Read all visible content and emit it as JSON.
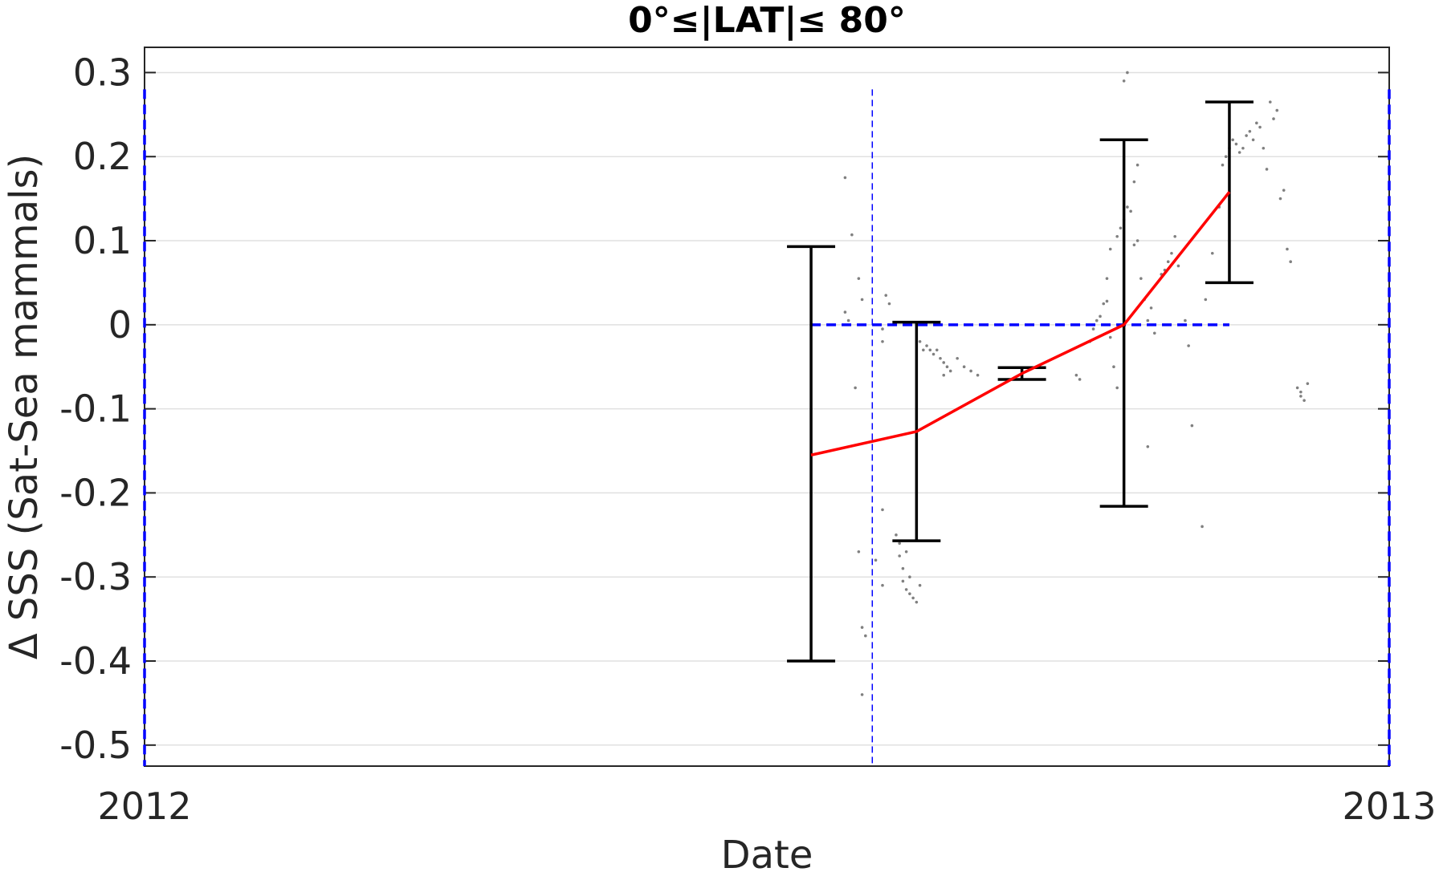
{
  "chart_data": {
    "type": "line",
    "title": "0°≤|LAT|≤ 80°",
    "xlabel": "Date",
    "ylabel": "Δ SSS (Sat-Sea mammals)",
    "x_tick_labels": [
      "2012",
      "2013"
    ],
    "xlim": [
      "2012-01-01",
      "2013-01-01"
    ],
    "ylim": [
      -0.525,
      0.33
    ],
    "y_ticks": [
      0.3,
      0.2,
      0.1,
      0,
      -0.1,
      -0.2,
      -0.3,
      -0.4,
      -0.5
    ],
    "y_tick_labels": [
      "0.3",
      "0.2",
      "0.1",
      "0",
      "-0.1",
      "-0.2",
      "-0.3",
      "-0.4",
      "-0.5"
    ],
    "grid": true,
    "colors": {
      "mean_line": "#ff0000",
      "error_bars": "#000000",
      "reference_lines": "#0000ff",
      "points": "#808080",
      "grid": "#e0e0e0"
    },
    "mean_series": {
      "x": [
        "2012-07-15",
        "2012-08-15",
        "2012-09-15",
        "2012-10-15",
        "2012-11-15"
      ],
      "y": [
        -0.155,
        -0.127,
        -0.058,
        0.0,
        0.158
      ]
    },
    "error_bars": [
      {
        "x": "2012-07-15",
        "low": -0.4,
        "high": 0.093
      },
      {
        "x": "2012-08-15",
        "low": -0.257,
        "high": 0.003
      },
      {
        "x": "2012-09-15",
        "low": -0.065,
        "high": -0.051
      },
      {
        "x": "2012-10-15",
        "low": -0.216,
        "high": 0.22
      },
      {
        "x": "2012-11-15",
        "low": 0.05,
        "high": 0.265
      }
    ],
    "reference_lines": {
      "zero_line": {
        "y": 0,
        "x_start": "2012-07-15",
        "x_end": "2012-11-15"
      },
      "vertical_lines": [
        "2012-01-01",
        "2012-08-02",
        "2013-01-01"
      ]
    },
    "scatter_points": [
      [
        "2012-07-25",
        0.175
      ],
      [
        "2012-07-27",
        0.107
      ],
      [
        "2012-07-25",
        0.015
      ],
      [
        "2012-07-26",
        0.005
      ],
      [
        "2012-07-29",
        0.055
      ],
      [
        "2012-07-30",
        0.03
      ],
      [
        "2012-07-28",
        -0.075
      ],
      [
        "2012-07-29",
        -0.27
      ],
      [
        "2012-07-30",
        -0.36
      ],
      [
        "2012-07-31",
        -0.37
      ],
      [
        "2012-07-30",
        -0.44
      ],
      [
        "2012-08-03",
        -0.28
      ],
      [
        "2012-08-05",
        -0.31
      ],
      [
        "2012-08-05",
        -0.22
      ],
      [
        "2012-08-06",
        0.035
      ],
      [
        "2012-08-07",
        0.025
      ],
      [
        "2012-08-05",
        -0.005
      ],
      [
        "2012-08-05",
        -0.02
      ],
      [
        "2012-08-09",
        -0.25
      ],
      [
        "2012-08-10",
        -0.26
      ],
      [
        "2012-08-10",
        -0.275
      ],
      [
        "2012-08-11",
        -0.29
      ],
      [
        "2012-08-11",
        -0.305
      ],
      [
        "2012-08-12",
        -0.315
      ],
      [
        "2012-08-13",
        -0.32
      ],
      [
        "2012-08-14",
        -0.325
      ],
      [
        "2012-08-15",
        -0.33
      ],
      [
        "2012-08-13",
        -0.3
      ],
      [
        "2012-08-16",
        -0.31
      ],
      [
        "2012-08-12",
        -0.27
      ],
      [
        "2012-08-16",
        -0.02
      ],
      [
        "2012-08-17",
        -0.03
      ],
      [
        "2012-08-18",
        -0.025
      ],
      [
        "2012-08-19",
        -0.03
      ],
      [
        "2012-08-20",
        -0.035
      ],
      [
        "2012-08-21",
        -0.03
      ],
      [
        "2012-08-22",
        -0.04
      ],
      [
        "2012-08-23",
        -0.045
      ],
      [
        "2012-08-24",
        -0.05
      ],
      [
        "2012-08-25",
        -0.055
      ],
      [
        "2012-08-23",
        -0.06
      ],
      [
        "2012-08-27",
        -0.04
      ],
      [
        "2012-08-29",
        -0.05
      ],
      [
        "2012-08-31",
        -0.055
      ],
      [
        "2012-09-02",
        -0.06
      ],
      [
        "2012-10-01",
        -0.06
      ],
      [
        "2012-10-02",
        -0.065
      ],
      [
        "2012-10-05",
        -0.02
      ],
      [
        "2012-10-06",
        -0.005
      ],
      [
        "2012-10-07",
        0.005
      ],
      [
        "2012-10-08",
        0.01
      ],
      [
        "2012-10-09",
        0.025
      ],
      [
        "2012-10-10",
        0.028
      ],
      [
        "2012-10-11",
        -0.015
      ],
      [
        "2012-10-12",
        -0.05
      ],
      [
        "2012-10-13",
        -0.075
      ],
      [
        "2012-10-10",
        0.055
      ],
      [
        "2012-10-11",
        0.09
      ],
      [
        "2012-10-13",
        0.105
      ],
      [
        "2012-10-14",
        0.115
      ],
      [
        "2012-10-15",
        0.125
      ],
      [
        "2012-10-16",
        0.14
      ],
      [
        "2012-10-17",
        0.135
      ],
      [
        "2012-10-18",
        0.095
      ],
      [
        "2012-10-19",
        0.1
      ],
      [
        "2012-10-20",
        0.055
      ],
      [
        "2012-10-21",
        0.03
      ],
      [
        "2012-10-22",
        0.005
      ],
      [
        "2012-10-23",
        0.02
      ],
      [
        "2012-10-24",
        -0.01
      ],
      [
        "2012-10-18",
        0.17
      ],
      [
        "2012-10-19",
        0.19
      ],
      [
        "2012-10-15",
        0.29
      ],
      [
        "2012-10-16",
        0.3
      ],
      [
        "2012-10-22",
        -0.145
      ],
      [
        "2012-10-26",
        0.06
      ],
      [
        "2012-10-27",
        0.065
      ],
      [
        "2012-10-28",
        0.075
      ],
      [
        "2012-10-29",
        0.085
      ],
      [
        "2012-10-30",
        0.105
      ],
      [
        "2012-10-31",
        0.07
      ],
      [
        "2012-11-02",
        0.005
      ],
      [
        "2012-11-03",
        -0.025
      ],
      [
        "2012-11-04",
        -0.12
      ],
      [
        "2012-11-07",
        -0.24
      ],
      [
        "2012-11-08",
        0.03
      ],
      [
        "2012-11-10",
        0.085
      ],
      [
        "2012-11-12",
        0.14
      ],
      [
        "2012-11-13",
        0.19
      ],
      [
        "2012-11-14",
        0.2
      ],
      [
        "2012-11-15",
        0.21
      ],
      [
        "2012-11-16",
        0.22
      ],
      [
        "2012-11-17",
        0.215
      ],
      [
        "2012-11-18",
        0.205
      ],
      [
        "2012-11-19",
        0.21
      ],
      [
        "2012-11-20",
        0.225
      ],
      [
        "2012-11-21",
        0.23
      ],
      [
        "2012-11-22",
        0.22
      ],
      [
        "2012-11-23",
        0.24
      ],
      [
        "2012-11-24",
        0.235
      ],
      [
        "2012-11-25",
        0.21
      ],
      [
        "2012-11-26",
        0.185
      ],
      [
        "2012-11-27",
        0.265
      ],
      [
        "2012-11-28",
        0.245
      ],
      [
        "2012-11-29",
        0.255
      ],
      [
        "2012-11-30",
        0.15
      ],
      [
        "2012-12-01",
        0.16
      ],
      [
        "2012-12-02",
        0.09
      ],
      [
        "2012-12-03",
        0.075
      ],
      [
        "2012-12-05",
        -0.075
      ],
      [
        "2012-12-06",
        -0.08
      ],
      [
        "2012-12-06",
        -0.085
      ],
      [
        "2012-12-07",
        -0.09
      ],
      [
        "2012-12-08",
        -0.07
      ]
    ]
  }
}
